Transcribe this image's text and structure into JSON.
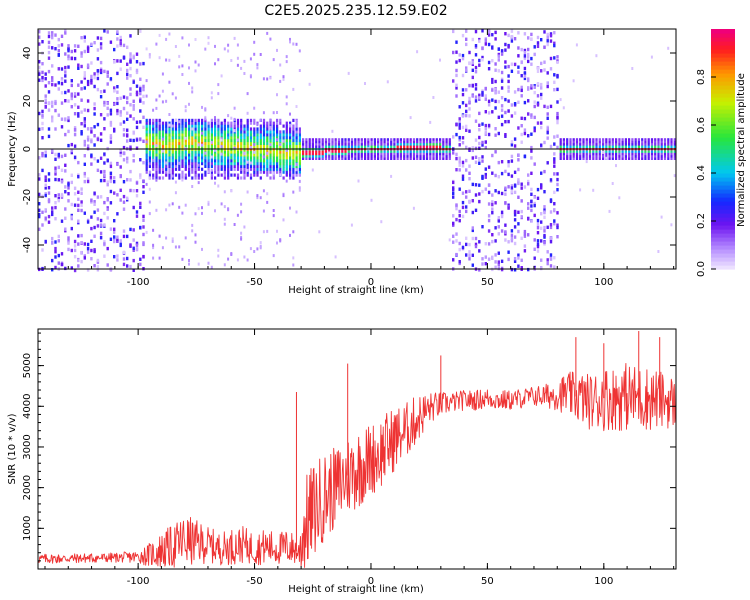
{
  "title": "C2E5.2025.235.12.59.E02",
  "colors": {
    "snr_line": "#ee3333",
    "doppler_line": "#000000",
    "background": "#ffffff"
  },
  "chart_data": [
    {
      "id": "spectrogram",
      "type": "heatmap",
      "xlabel": "Height of straight line (km)",
      "ylabel": "Frequency (Hz)",
      "xlim": [
        -143,
        131
      ],
      "ylim": [
        -50,
        50
      ],
      "xticks": [
        -100,
        -50,
        0,
        50,
        100
      ],
      "xtick_labels": [
        "-100",
        "-50",
        "0",
        "50",
        "100"
      ],
      "yticks": [
        -40,
        -20,
        0,
        20,
        40
      ],
      "ytick_labels": [
        "-40",
        "-20",
        "0",
        "20",
        "40"
      ],
      "colorbar": {
        "label": "Normalized spectral amplitude",
        "range": [
          0,
          1
        ],
        "ticks": [
          0.0,
          0.2,
          0.4,
          0.6,
          0.8
        ],
        "tick_labels": [
          "0.0",
          "0.2",
          "0.4",
          "0.6",
          "0.8"
        ]
      },
      "reference_line_hz": 0,
      "dominant_frequency": {
        "x": [
          -98,
          -90,
          -80,
          -70,
          -60,
          -50,
          -40,
          -30,
          -20,
          -10,
          0,
          10,
          20,
          30,
          34
        ],
        "y": [
          4,
          1,
          3,
          2,
          1,
          0,
          -1,
          -2,
          -1,
          0,
          0,
          0,
          1,
          0,
          0
        ]
      },
      "regions": [
        {
          "x_range": [
            -143,
            -98
          ],
          "description": "scattered noise",
          "level": 0.2
        },
        {
          "x_range": [
            -98,
            -30
          ],
          "description": "signal band",
          "level": 0.5
        },
        {
          "x_range": [
            -30,
            34
          ],
          "description": "strong narrow line",
          "level": 1.0
        },
        {
          "x_range": [
            81,
            131
          ],
          "description": "strong narrow line",
          "level": 1.0
        }
      ]
    },
    {
      "id": "snr",
      "type": "line",
      "xlabel": "Height of straight line (km)",
      "ylabel": "SNR (10 * v/v)",
      "xlim": [
        -143,
        131
      ],
      "ylim": [
        0,
        5900
      ],
      "xticks": [
        -100,
        -50,
        0,
        50,
        100
      ],
      "xtick_labels": [
        "-100",
        "-50",
        "0",
        "50",
        "100"
      ],
      "yticks": [
        1000,
        2000,
        3000,
        4000,
        5000
      ],
      "ytick_labels": [
        "1000",
        "2000",
        "3000",
        "4000",
        "5000"
      ],
      "series": [
        {
          "name": "SNR",
          "x": [
            -143,
            -130,
            -120,
            -110,
            -100,
            -95,
            -90,
            -85,
            -80,
            -75,
            -70,
            -65,
            -60,
            -55,
            -50,
            -45,
            -40,
            -35,
            -31,
            -30,
            -28,
            -25,
            -20,
            -15,
            -10,
            -5,
            0,
            5,
            10,
            15,
            20,
            25,
            30,
            35,
            40,
            45,
            50,
            55,
            60,
            65,
            70,
            75,
            80,
            85,
            90,
            95,
            100,
            105,
            110,
            115,
            120,
            125,
            131
          ],
          "mean": [
            250,
            260,
            270,
            280,
            300,
            350,
            450,
            550,
            700,
            650,
            600,
            500,
            550,
            600,
            500,
            550,
            500,
            550,
            400,
            700,
            1100,
            1400,
            1800,
            2000,
            2300,
            2500,
            2700,
            2900,
            3200,
            3400,
            3700,
            3950,
            4050,
            4100,
            4150,
            4150,
            4200,
            4150,
            4150,
            4200,
            4250,
            4250,
            4300,
            4300,
            4200,
            4100,
            4200,
            4200,
            4250,
            4200,
            4200,
            4150,
            4100
          ],
          "amplitude": [
            120,
            120,
            120,
            120,
            150,
            300,
            450,
            550,
            650,
            550,
            450,
            400,
            450,
            450,
            400,
            450,
            400,
            450,
            300,
            900,
            1200,
            1200,
            1100,
            1000,
            1000,
            1000,
            900,
            900,
            800,
            700,
            600,
            400,
            300,
            250,
            250,
            250,
            250,
            250,
            250,
            250,
            250,
            300,
            400,
            550,
            650,
            700,
            800,
            800,
            850,
            800,
            800,
            700,
            650
          ],
          "peak_values": [
            {
              "x": -32,
              "y": 4350
            },
            {
              "x": -10,
              "y": 5050
            },
            {
              "x": 30,
              "y": 5250
            },
            {
              "x": 88,
              "y": 5700
            },
            {
              "x": 100,
              "y": 5550
            },
            {
              "x": 115,
              "y": 5850
            },
            {
              "x": 124,
              "y": 5700
            }
          ]
        }
      ]
    }
  ]
}
